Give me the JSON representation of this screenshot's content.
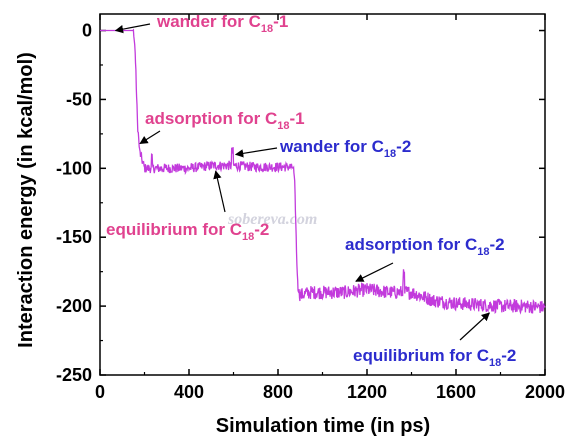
{
  "chart_data": {
    "type": "line",
    "xlabel": "Simulation time (in ps)",
    "ylabel": "Interaction energy (in kcal/mol)",
    "xlim": [
      0,
      2000
    ],
    "ylim": [
      -250,
      12
    ],
    "x_ticks": [
      "0",
      "400",
      "800",
      "1200",
      "1600",
      "2000"
    ],
    "y_ticks": [
      "0",
      "-50",
      "-100",
      "-150",
      "-200",
      "-250"
    ],
    "grid": false,
    "legend": "none",
    "series_color": "#c23bdc",
    "watermark": "sobereva.com",
    "series": [
      {
        "x": [
          0,
          40,
          80,
          120,
          150,
          158,
          163,
          168,
          172,
          178,
          200,
          300,
          400,
          500,
          600,
          700,
          800,
          860,
          870,
          875,
          880,
          885,
          890,
          895,
          900,
          950,
          1000,
          1100,
          1200,
          1300,
          1400,
          1500,
          1600,
          1700,
          1800,
          1900,
          2000
        ],
        "values": [
          0,
          0,
          0,
          0,
          0,
          -15,
          -40,
          -65,
          -75,
          -88,
          -100,
          -100,
          -100,
          -98,
          -98,
          -99,
          -99,
          -99,
          -100,
          -110,
          -140,
          -170,
          -188,
          -190,
          -192,
          -190,
          -190,
          -190,
          -188,
          -190,
          -190,
          -196,
          -198,
          -199,
          -200,
          -200,
          -201
        ]
      }
    ],
    "annotations": [
      {
        "label": "wander for C",
        "sub": "18",
        "suffix": "-1",
        "color": "#e0428f",
        "target": [
          70,
          0
        ]
      },
      {
        "label": "adsorption for C",
        "sub": "18",
        "suffix": "-1",
        "color": "#e0428f",
        "target": [
          180,
          -82
        ]
      },
      {
        "label": "wander for C",
        "sub": "18",
        "suffix": "-2",
        "color": "#2c2ccd",
        "target": [
          610,
          -90
        ]
      },
      {
        "label": "equilibrium for C",
        "sub": "18",
        "suffix": "-2",
        "color": "#e0428f",
        "target": [
          520,
          -102
        ]
      },
      {
        "label": "adsorption for C",
        "sub": "18",
        "suffix": "-2",
        "color": "#2c2ccd",
        "target": [
          1150,
          -182
        ]
      },
      {
        "label": "equilibrium for C",
        "sub": "18",
        "suffix": "-2",
        "color": "#2c2ccd",
        "target": [
          1750,
          -205
        ]
      }
    ]
  }
}
